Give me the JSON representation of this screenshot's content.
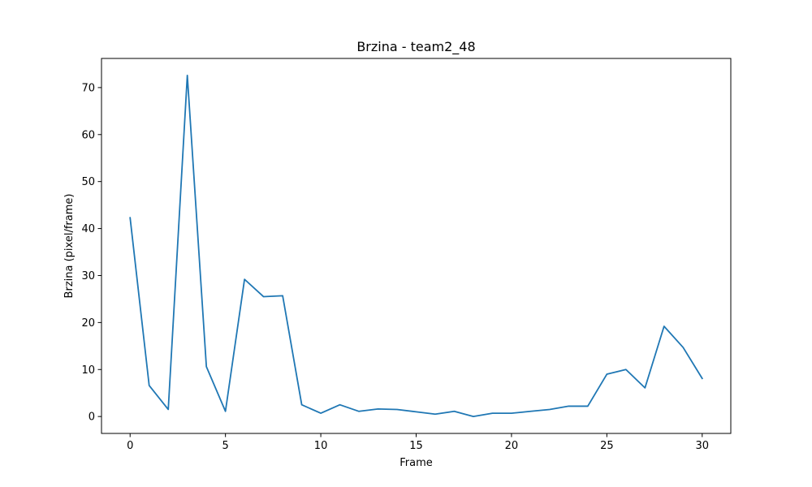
{
  "chart_data": {
    "type": "line",
    "title": "Brzina - team2_48",
    "xlabel": "Frame",
    "ylabel": "Brzina (pixel/frame)",
    "xlim": [
      -1.5,
      31.5
    ],
    "ylim": [
      -3.6,
      76.2
    ],
    "xticks": [
      0,
      5,
      10,
      15,
      20,
      25,
      30
    ],
    "yticks": [
      0,
      10,
      20,
      30,
      40,
      50,
      60,
      70
    ],
    "grid": false,
    "series": [
      {
        "color": "#1f77b4",
        "x": [
          0,
          1,
          2,
          3,
          4,
          5,
          6,
          7,
          8,
          9,
          10,
          11,
          12,
          13,
          14,
          15,
          16,
          17,
          18,
          19,
          20,
          21,
          22,
          23,
          24,
          25,
          26,
          27,
          28,
          29,
          30
        ],
        "y": [
          42.3,
          6.6,
          1.5,
          72.6,
          10.6,
          1.1,
          29.2,
          25.5,
          25.7,
          2.5,
          0.7,
          2.5,
          1.1,
          1.6,
          1.5,
          1.0,
          0.5,
          1.1,
          0.0,
          0.7,
          0.7,
          1.1,
          1.5,
          2.2,
          2.2,
          9.0,
          10.0,
          6.1,
          19.2,
          14.7,
          8.1
        ]
      }
    ]
  }
}
